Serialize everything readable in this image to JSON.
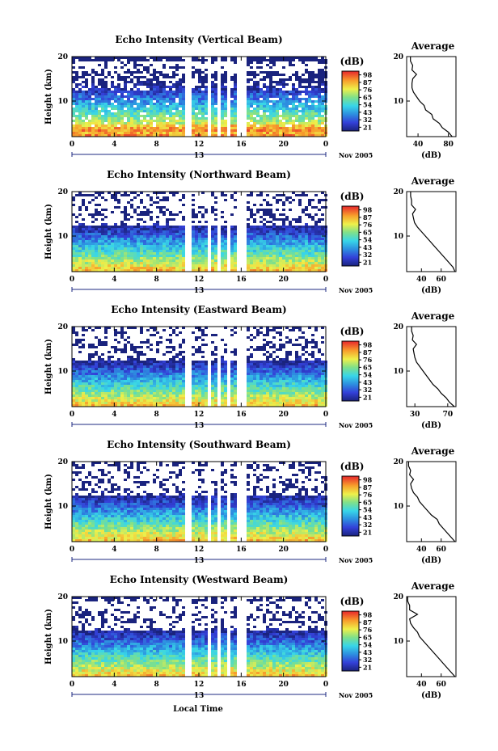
{
  "figure": {
    "bottom_xlabel": "Local Time",
    "date_label": "Nov 2005",
    "day_label": "13"
  },
  "chart_data": [
    {
      "type": "heatmap",
      "title": "Echo Intensity (Vertical Beam)",
      "xlabel": "Local Time",
      "ylabel": "Height (km)",
      "xlim": [
        0,
        24
      ],
      "ylim": [
        2,
        20
      ],
      "x_ticks": [
        "0",
        "4",
        "8",
        "12",
        "16",
        "20",
        "0"
      ],
      "y_ticks": [
        "10",
        "20"
      ],
      "colorbar": {
        "unit": "(dB)",
        "ticks": [
          "98",
          "87",
          "76",
          "65",
          "54",
          "43",
          "32",
          "21"
        ]
      },
      "gaps_hours": [
        [
          10.8,
          11.3
        ],
        [
          12.8,
          13.2
        ],
        [
          13.8,
          14.0
        ],
        [
          14.6,
          15.0
        ],
        [
          15.6,
          16.5
        ]
      ],
      "profile": {
        "title": "Average",
        "xlabel": "(dB)",
        "x_ticks": [
          "40",
          "80"
        ],
        "xlim": [
          25,
          90
        ],
        "y_ticks": [
          "10",
          "20"
        ],
        "heights_km": [
          2,
          3,
          4,
          5,
          6,
          7,
          8,
          9,
          10,
          11,
          12,
          13,
          14,
          15,
          16,
          17,
          18,
          19,
          20
        ],
        "values_db": [
          85,
          80,
          72,
          68,
          60,
          58,
          50,
          48,
          42,
          38,
          34,
          32,
          32,
          33,
          38,
          32,
          33,
          30,
          30
        ]
      }
    },
    {
      "type": "heatmap",
      "title": "Echo Intensity (Northward Beam)",
      "xlabel": "Local Time",
      "ylabel": "Height (km)",
      "xlim": [
        0,
        24
      ],
      "ylim": [
        2,
        20
      ],
      "x_ticks": [
        "0",
        "4",
        "8",
        "12",
        "16",
        "20",
        "0"
      ],
      "y_ticks": [
        "10",
        "20"
      ],
      "colorbar": {
        "unit": "(dB)",
        "ticks": [
          "98",
          "87",
          "76",
          "65",
          "54",
          "43",
          "32",
          "21"
        ]
      },
      "gaps_hours": [
        [
          10.8,
          11.3
        ],
        [
          12.8,
          13.2
        ],
        [
          13.8,
          14.0
        ],
        [
          14.6,
          15.0
        ],
        [
          15.6,
          16.5
        ]
      ],
      "profile": {
        "title": "Average",
        "xlabel": "(dB)",
        "x_ticks": [
          "40",
          "60"
        ],
        "xlim": [
          25,
          75
        ],
        "y_ticks": [
          "10",
          "20"
        ],
        "heights_km": [
          2,
          3,
          4,
          5,
          6,
          7,
          8,
          9,
          10,
          11,
          12,
          13,
          14,
          15,
          16,
          17,
          18,
          19,
          20
        ],
        "values_db": [
          74,
          72,
          68,
          64,
          60,
          56,
          52,
          48,
          44,
          40,
          36,
          33,
          32,
          31,
          34,
          30,
          30,
          29,
          29
        ]
      }
    },
    {
      "type": "heatmap",
      "title": "Echo Intensity (Eastward Beam)",
      "xlabel": "Local Time",
      "ylabel": "Height (km)",
      "xlim": [
        0,
        24
      ],
      "ylim": [
        2,
        20
      ],
      "x_ticks": [
        "0",
        "4",
        "8",
        "12",
        "16",
        "20",
        "0"
      ],
      "y_ticks": [
        "10",
        "20"
      ],
      "colorbar": {
        "unit": "(dB)",
        "ticks": [
          "98",
          "87",
          "76",
          "65",
          "54",
          "43",
          "32",
          "21"
        ]
      },
      "gaps_hours": [
        [
          10.8,
          11.3
        ],
        [
          12.8,
          13.2
        ],
        [
          13.8,
          14.0
        ],
        [
          14.6,
          15.0
        ],
        [
          15.6,
          16.5
        ]
      ],
      "profile": {
        "title": "Average",
        "xlabel": "(dB)",
        "x_ticks": [
          "30",
          "70"
        ],
        "xlim": [
          20,
          80
        ],
        "y_ticks": [
          "10",
          "20"
        ],
        "heights_km": [
          2,
          3,
          4,
          5,
          6,
          7,
          8,
          9,
          10,
          11,
          12,
          13,
          14,
          15,
          16,
          17,
          18,
          19,
          20
        ],
        "values_db": [
          78,
          72,
          68,
          62,
          58,
          52,
          48,
          44,
          40,
          36,
          32,
          30,
          29,
          28,
          32,
          27,
          28,
          26,
          26
        ]
      }
    },
    {
      "type": "heatmap",
      "title": "Echo Intensity (Southward Beam)",
      "xlabel": "Local Time",
      "ylabel": "Height (km)",
      "xlim": [
        0,
        24
      ],
      "ylim": [
        2,
        20
      ],
      "x_ticks": [
        "0",
        "4",
        "8",
        "12",
        "16",
        "20",
        "0"
      ],
      "y_ticks": [
        "10",
        "20"
      ],
      "colorbar": {
        "unit": "(dB)",
        "ticks": [
          "98",
          "87",
          "76",
          "65",
          "54",
          "43",
          "32",
          "21"
        ]
      },
      "gaps_hours": [
        [
          10.8,
          11.3
        ],
        [
          12.8,
          13.2
        ],
        [
          13.8,
          14.0
        ],
        [
          14.6,
          15.0
        ],
        [
          15.6,
          16.5
        ]
      ],
      "profile": {
        "title": "Average",
        "xlabel": "(dB)",
        "x_ticks": [
          "40",
          "60"
        ],
        "xlim": [
          25,
          75
        ],
        "y_ticks": [
          "10",
          "20"
        ],
        "heights_km": [
          2,
          3,
          4,
          5,
          6,
          7,
          8,
          9,
          10,
          11,
          12,
          13,
          14,
          15,
          16,
          17,
          18,
          19,
          20
        ],
        "values_db": [
          74,
          70,
          66,
          62,
          58,
          56,
          50,
          46,
          42,
          38,
          36,
          32,
          30,
          29,
          32,
          28,
          29,
          27,
          27
        ]
      }
    },
    {
      "type": "heatmap",
      "title": "Echo Intensity (Westward Beam)",
      "xlabel": "Local Time",
      "ylabel": "Height (km)",
      "xlim": [
        0,
        24
      ],
      "ylim": [
        2,
        20
      ],
      "x_ticks": [
        "0",
        "4",
        "8",
        "12",
        "16",
        "20",
        "0"
      ],
      "y_ticks": [
        "10",
        "20"
      ],
      "colorbar": {
        "unit": "(dB)",
        "ticks": [
          "98",
          "87",
          "76",
          "65",
          "54",
          "43",
          "32",
          "21"
        ]
      },
      "gaps_hours": [
        [
          10.8,
          11.3
        ],
        [
          12.8,
          13.2
        ],
        [
          13.8,
          14.0
        ],
        [
          14.6,
          15.0
        ],
        [
          15.6,
          16.5
        ]
      ],
      "profile": {
        "title": "Average",
        "xlabel": "(dB)",
        "x_ticks": [
          "40",
          "60"
        ],
        "xlim": [
          25,
          75
        ],
        "y_ticks": [
          "10",
          "20"
        ],
        "heights_km": [
          2,
          3,
          4,
          5,
          6,
          7,
          8,
          9,
          10,
          11,
          12,
          13,
          14,
          15,
          16,
          17,
          18,
          19,
          20
        ],
        "values_db": [
          74,
          70,
          66,
          62,
          58,
          54,
          50,
          46,
          42,
          38,
          36,
          32,
          29,
          28,
          36,
          28,
          28,
          26,
          26
        ]
      }
    }
  ]
}
